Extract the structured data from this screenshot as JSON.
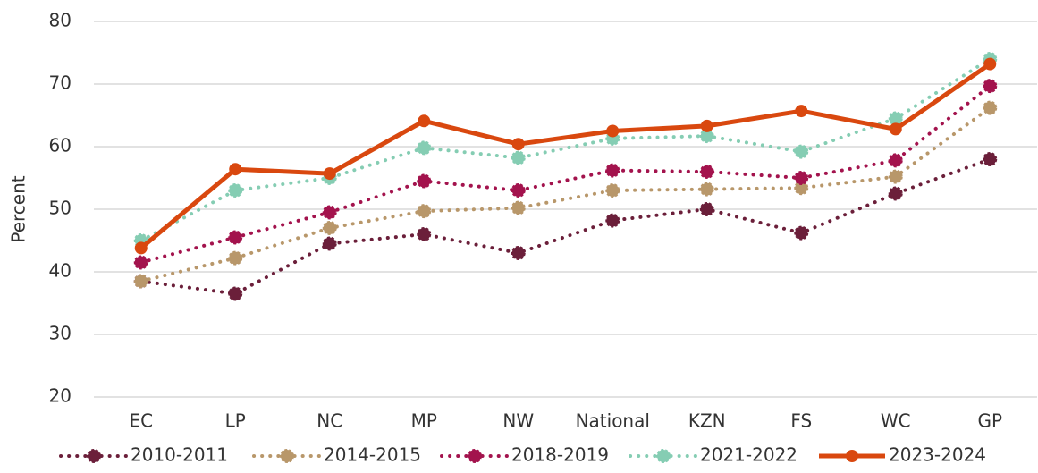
{
  "chart_data": {
    "type": "line",
    "ylabel": "Percent",
    "categories": [
      "EC",
      "LP",
      "NC",
      "MP",
      "NW",
      "National",
      "KZN",
      "FS",
      "WC",
      "GP"
    ],
    "series": [
      {
        "name": "2010-2011",
        "color": "#6b1f3a",
        "dotted": true,
        "values": [
          38.5,
          36.5,
          44.5,
          46,
          43,
          48.2,
          50,
          46.2,
          52.5,
          58
        ]
      },
      {
        "name": "2014-2015",
        "color": "#b8976a",
        "dotted": true,
        "values": [
          38.5,
          42.2,
          47,
          49.7,
          50.2,
          53,
          53.2,
          53.4,
          55.2,
          66.2
        ]
      },
      {
        "name": "2018-2019",
        "color": "#a3134d",
        "dotted": true,
        "values": [
          41.5,
          45.5,
          49.5,
          54.5,
          53,
          56.2,
          56,
          55,
          57.8,
          69.7
        ]
      },
      {
        "name": "2021-2022",
        "color": "#85cdb3",
        "dotted": true,
        "values": [
          45,
          53,
          55,
          59.8,
          58.2,
          61.3,
          61.7,
          59.2,
          64.5,
          74
        ]
      },
      {
        "name": "2023-2024",
        "color": "#d9480f",
        "dotted": false,
        "values": [
          43.8,
          56.4,
          55.7,
          64.1,
          60.4,
          62.5,
          63.3,
          65.7,
          62.8,
          73.2
        ]
      }
    ],
    "ylim": [
      20,
      80
    ],
    "yticks": [
      20,
      30,
      40,
      50,
      60,
      70,
      80
    ],
    "grid": true,
    "legend": "bottom"
  }
}
